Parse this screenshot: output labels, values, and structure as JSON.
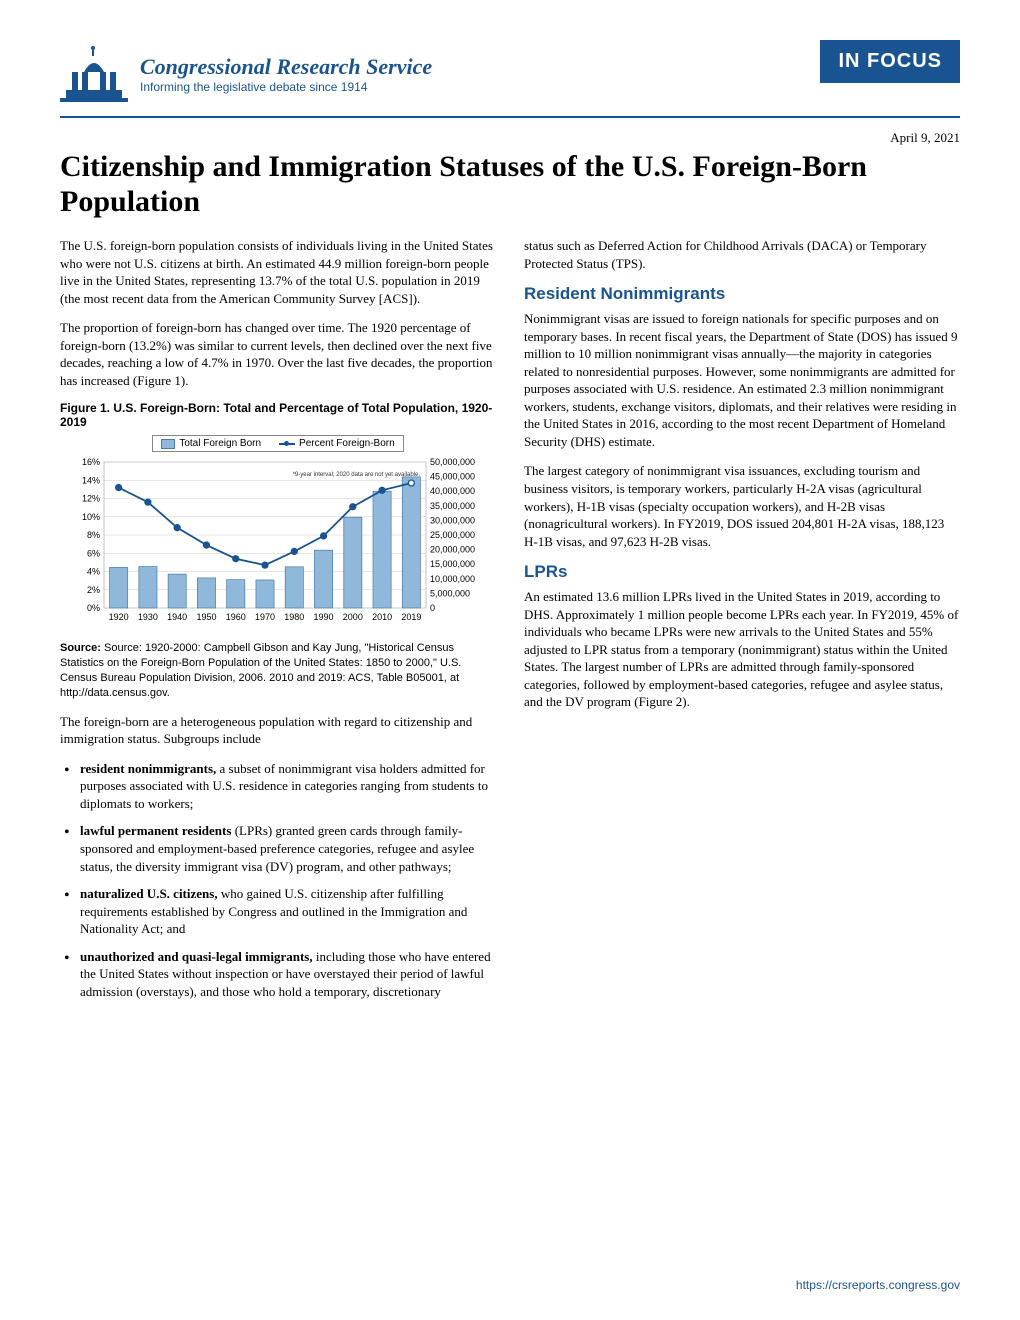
{
  "header": {
    "org_name": "Congressional Research Service",
    "tagline": "Informing the legislative debate since 1914",
    "badge": "IN FOCUS",
    "logo_color": "#1a5490"
  },
  "date": "April 9, 2021",
  "title": "Citizenship and Immigration Statuses of the U.S. Foreign-Born Population",
  "left": {
    "p1": "The U.S. foreign-born population consists of individuals living in the United States who were not U.S. citizens at birth. An estimated 44.9 million foreign-born people live in the United States, representing 13.7% of the total U.S. population in 2019 (the most recent data from the American Community Survey [ACS]).",
    "p2": "The proportion of foreign-born has changed over time. The 1920 percentage of foreign-born (13.2%) was similar to current levels, then declined over the next five decades, reaching a low of 4.7% in 1970. Over the last five decades, the proportion has increased (Figure 1).",
    "fig1_title": "Figure 1. U.S. Foreign-Born: Total and Percentage of Total Population, 1920-2019",
    "fig1_source": "Source: 1920-2000: Campbell Gibson and Kay Jung, \"Historical Census Statistics on the Foreign-Born Population of the United States: 1850 to 2000,\" U.S. Census Bureau Population Division, 2006. 2010 and 2019: ACS, Table B05001, at http://data.census.gov.",
    "p3": "The foreign-born are a heterogeneous population with regard to citizenship and immigration status. Subgroups include",
    "bullets": [
      "resident nonimmigrants, a subset of nonimmigrant visa holders admitted for purposes associated with U.S. residence in categories ranging from students to diplomats to workers;",
      "lawful permanent residents (LPRs) granted green cards through family-sponsored and employment-based preference categories, refugee and asylee status, the diversity immigrant visa (DV) program, and other pathways;",
      "naturalized U.S. citizens, who gained U.S. citizenship after fulfilling requirements established by Congress and outlined in the Immigration and Nationality Act; and",
      "unauthorized and quasi-legal immigrants, including those who have entered the United States without inspection or have overstayed their period of lawful admission (overstays), and those who hold a temporary, discretionary"
    ],
    "bullet_bold": [
      "resident nonimmigrants,",
      "lawful permanent residents",
      "naturalized U.S. citizens,",
      "unauthorized and quasi-legal immigrants,"
    ]
  },
  "right": {
    "p0": "status such as Deferred Action for Childhood Arrivals (DACA) or Temporary Protected Status (TPS).",
    "h1": "Resident Nonimmigrants",
    "p1": "Nonimmigrant visas are issued to foreign nationals for specific purposes and on temporary bases. In recent fiscal years, the Department of State (DOS) has issued 9 million to 10 million nonimmigrant visas annually—the majority in categories related to nonresidential purposes. However, some nonimmigrants are admitted for purposes associated with U.S. residence. An estimated 2.3 million nonimmigrant workers, students, exchange visitors, diplomats, and their relatives were residing in the United States in 2016, according to the most recent Department of Homeland Security (DHS) estimate.",
    "p2": "The largest category of nonimmigrant visa issuances, excluding tourism and business visitors, is temporary workers, particularly H-2A visas (agricultural workers), H-1B visas (specialty occupation workers), and H-2B visas (nonagricultural workers). In FY2019, DOS issued 204,801 H-2A visas, 188,123 H-1B visas, and 97,623 H-2B visas.",
    "h2": "LPRs",
    "p3": "An estimated 13.6 million LPRs lived in the United States in 2019, according to DHS. Approximately 1 million people become LPRs each year. In FY2019, 45% of individuals who became LPRs were new arrivals to the United States and 55% adjusted to LPR status from a temporary (nonimmigrant) status within the United States. The largest number of LPRs are admitted through family-sponsored categories, followed by employment-based categories, refugee and asylee status, and the DV program (Figure 2)."
  },
  "chart": {
    "type": "bar+line",
    "categories": [
      "1920",
      "1930",
      "1940",
      "1950",
      "1960",
      "1970",
      "1980",
      "1990",
      "2000",
      "2010",
      "2019"
    ],
    "bar_values_millions": [
      13.9,
      14.2,
      11.6,
      10.3,
      9.7,
      9.6,
      14.1,
      19.8,
      31.1,
      40.0,
      44.9
    ],
    "line_values_pct": [
      13.2,
      11.6,
      8.8,
      6.9,
      5.4,
      4.7,
      6.2,
      7.9,
      11.1,
      12.9,
      13.7
    ],
    "left_axis": {
      "min": 0,
      "max": 16,
      "step": 2,
      "suffix": "%",
      "label_fontsize": 9
    },
    "right_axis": {
      "min": 0,
      "max": 50000000,
      "step": 5000000,
      "label_fontsize": 9
    },
    "bar_color": "#8fb8da",
    "bar_border": "#4a7aa8",
    "line_color": "#1a5490",
    "marker_color": "#1a5490",
    "marker_last_open": true,
    "grid_color": "#cccccc",
    "background_color": "#ffffff",
    "legend": {
      "bar": "Total Foreign Born",
      "line": "Percent Foreign-Born"
    },
    "note": "*9-year interval; 2020 data are not yet available.",
    "note_fontsize": 6,
    "tick_fontsize": 9
  },
  "footer_url": "https://crsreports.congress.gov"
}
